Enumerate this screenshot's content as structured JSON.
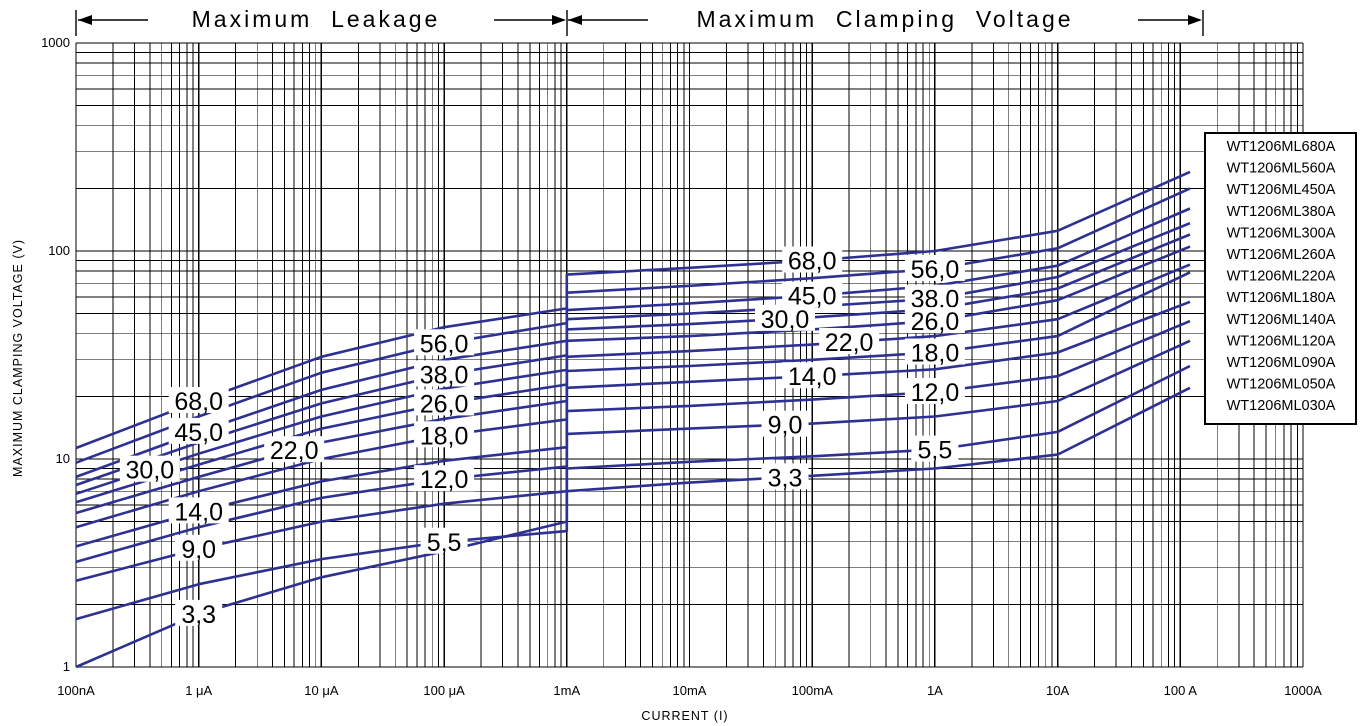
{
  "chart_data": {
    "type": "line",
    "title": "",
    "header": {
      "left": "Maximum  Leakage",
      "right": "Maximum  Clamping  Voltage"
    },
    "xlabel": "CURRENT (I)",
    "ylabel": "MAXIMUM CLAMPING VOLTAGE (V)",
    "x_scale": "log",
    "y_scale": "log",
    "x_unit": "A",
    "y_unit": "V",
    "xlim": [
      1e-07,
      1000
    ],
    "ylim": [
      1,
      1000
    ],
    "x_ticks": [
      {
        "value": 1e-07,
        "label": "100nA"
      },
      {
        "value": 1e-06,
        "label": "1 μA"
      },
      {
        "value": 1e-05,
        "label": "10 μA"
      },
      {
        "value": 0.0001,
        "label": "100 μA"
      },
      {
        "value": 0.001,
        "label": "1mA"
      },
      {
        "value": 0.01,
        "label": "10mA"
      },
      {
        "value": 0.1,
        "label": "100mA"
      },
      {
        "value": 1,
        "label": "1A"
      },
      {
        "value": 10,
        "label": "10A"
      },
      {
        "value": 100,
        "label": "100 A"
      },
      {
        "value": 1000,
        "label": "1000A"
      }
    ],
    "y_ticks": [
      {
        "value": 1,
        "label": "1"
      },
      {
        "value": 10,
        "label": "10"
      },
      {
        "value": 100,
        "label": "100"
      },
      {
        "value": 1000,
        "label": "1000"
      }
    ],
    "grid": true,
    "legend_position": "right",
    "series": [
      {
        "name": "WT1206ML680A",
        "label": "68,0",
        "x": [
          1e-07,
          1e-06,
          1e-05,
          0.0001,
          0.001,
          0.001,
          0.01,
          0.1,
          1,
          10,
          120
        ],
        "y": [
          11.3,
          19,
          31,
          43,
          53,
          77,
          83,
          90,
          100,
          125,
          240
        ]
      },
      {
        "name": "WT1206ML560A",
        "label": "56,0",
        "x": [
          1e-07,
          1e-06,
          1e-05,
          0.0001,
          0.001,
          0.001,
          0.01,
          0.1,
          1,
          10,
          120
        ],
        "y": [
          9.6,
          16,
          26,
          36,
          45,
          63,
          68,
          74,
          82,
          103,
          200
        ]
      },
      {
        "name": "WT1206ML450A",
        "label": "45,0",
        "x": [
          1e-07,
          1e-06,
          1e-05,
          0.0001,
          0.001,
          0.001,
          0.01,
          0.1,
          1,
          10,
          120
        ],
        "y": [
          8.2,
          13.5,
          21.5,
          30,
          37,
          52,
          56,
          61,
          68,
          85,
          160
        ]
      },
      {
        "name": "WT1206ML380A",
        "label": "38,0",
        "x": [
          1e-07,
          1e-06,
          1e-05,
          0.0001,
          0.001,
          0.001,
          0.01,
          0.1,
          1,
          10,
          120
        ],
        "y": [
          7.5,
          12,
          18.5,
          25.5,
          31.5,
          47,
          50,
          54,
          59,
          75,
          136
        ]
      },
      {
        "name": "WT1206ML300A",
        "label": "30,0",
        "x": [
          1e-07,
          1e-06,
          1e-05,
          0.0001,
          0.001,
          0.001,
          0.01,
          0.1,
          1,
          10,
          120
        ],
        "y": [
          6.8,
          10.6,
          16,
          21.8,
          26.8,
          42,
          44.5,
          48,
          52.5,
          66,
          120
        ]
      },
      {
        "name": "WT1206ML260A",
        "label": "26,0",
        "x": [
          1e-07,
          1e-06,
          1e-05,
          0.0001,
          0.001,
          0.001,
          0.01,
          0.1,
          1,
          10,
          120
        ],
        "y": [
          6.2,
          9.4,
          14,
          18.5,
          22.8,
          37,
          39,
          42,
          46,
          58,
          105
        ]
      },
      {
        "name": "WT1206ML220A",
        "label": "22,0",
        "x": [
          1e-07,
          1e-06,
          1e-05,
          0.0001,
          0.001,
          0.001,
          0.01,
          0.1,
          1,
          10,
          120
        ],
        "y": [
          5.5,
          8.2,
          12,
          15.6,
          19,
          31,
          33,
          35.5,
          39,
          47,
          86
        ]
      },
      {
        "name": "WT1206ML180A",
        "label": "18,0",
        "x": [
          1e-07,
          1e-06,
          1e-05,
          0.0001,
          0.001,
          0.001,
          0.01,
          0.1,
          1,
          10,
          120
        ],
        "y": [
          4.7,
          7,
          10,
          13,
          15.5,
          26.5,
          28,
          30,
          32.5,
          39,
          79
        ]
      },
      {
        "name": "WT1206ML140A",
        "label": "14,0",
        "x": [
          1e-07,
          1e-06,
          1e-05,
          0.0001,
          0.001,
          0.001,
          0.01,
          0.1,
          1,
          10,
          120
        ],
        "y": [
          3.8,
          5.6,
          7.8,
          9.8,
          11.4,
          22,
          23.5,
          25,
          27,
          32.5,
          57
        ]
      },
      {
        "name": "WT1206ML120A",
        "label": "12,0",
        "x": [
          1e-07,
          1e-06,
          1e-05,
          0.0001,
          0.001,
          0.001,
          0.01,
          0.1,
          1,
          10,
          120
        ],
        "y": [
          3.2,
          4.7,
          6.5,
          8,
          9.2,
          17,
          18,
          19.3,
          21,
          25,
          46
        ]
      },
      {
        "name": "WT1206ML090A",
        "label": "9,0",
        "x": [
          1e-07,
          1e-06,
          1e-05,
          0.0001,
          0.001,
          0.001,
          0.01,
          0.1,
          1,
          10,
          120
        ],
        "y": [
          2.6,
          3.7,
          5,
          6.1,
          7,
          13.2,
          14,
          14.8,
          16,
          19,
          37
        ]
      },
      {
        "name": "WT1206ML050A",
        "label": "5,5",
        "x": [
          1e-07,
          1e-06,
          1e-05,
          0.0001,
          0.001,
          0.001,
          0.01,
          0.1,
          1,
          10,
          120
        ],
        "y": [
          1.7,
          2.5,
          3.3,
          4,
          4.5,
          9,
          9.7,
          10.3,
          11.1,
          13.5,
          28
        ]
      },
      {
        "name": "WT1206ML030A",
        "label": "3,3",
        "x": [
          1e-07,
          1e-06,
          1e-05,
          0.0001,
          0.001,
          0.001,
          0.01,
          0.1,
          1,
          10,
          120
        ],
        "y": [
          1,
          1.8,
          2.7,
          3.6,
          5,
          7,
          7.7,
          8.3,
          9,
          10.5,
          22
        ]
      }
    ],
    "colors": {
      "series": "#2e3192",
      "grid": "#000000"
    }
  }
}
